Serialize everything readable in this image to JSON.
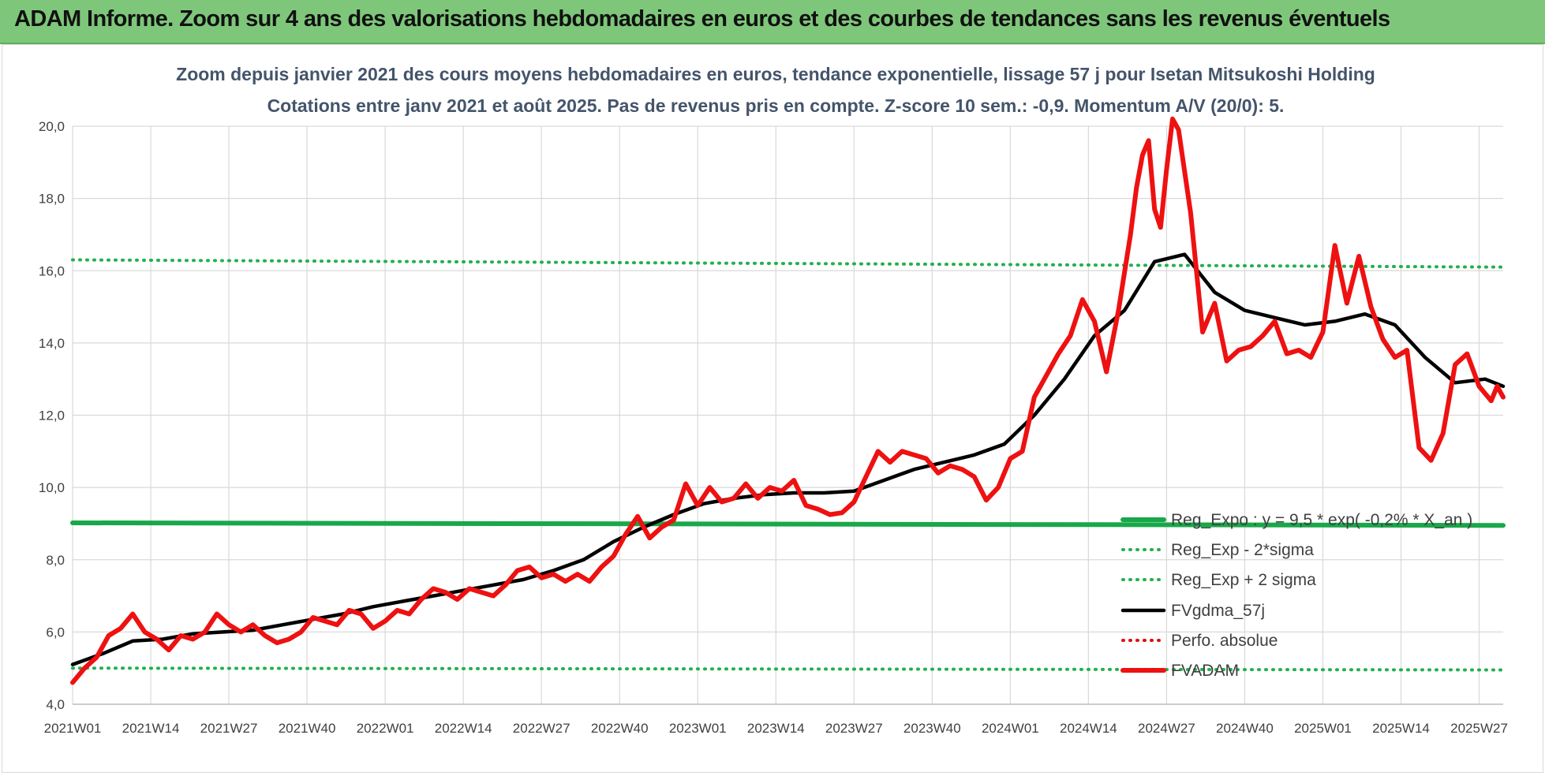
{
  "banner": {
    "title": "ADAM Informe. Zoom sur 4 ans des valorisations hebdomadaires en euros et des courbes de tendances sans les revenus éventuels"
  },
  "colors": {
    "banner": "#7ec77a",
    "reg_expo": "#18a84a",
    "sigma_bands": "#22b04f",
    "fvgdma": "#000000",
    "perfo": "#e01010",
    "fvadam": "#ee1111",
    "gridlines": "#d9d9d9",
    "title_text": "#44546a"
  },
  "chart_data": {
    "type": "line",
    "title": "Zoom depuis janvier 2021 des cours moyens hebdomadaires en euros, tendance exponentielle, lissage 57 j pour Isetan Mitsukoshi Holding",
    "subtitle": "Cotations entre janv 2021 et août 2025.  Pas de revenus pris en compte. Z-score 10 sem.: -0,9. Momentum A/V (20/0): 5.",
    "xlabel": "",
    "ylabel": "",
    "ylim": [
      4,
      20
    ],
    "yticks": [
      "4,0",
      "6,0",
      "8,0",
      "10,0",
      "12,0",
      "14,0",
      "16,0",
      "18,0",
      "20,0"
    ],
    "x_ticks": [
      "2021W01",
      "2021W14",
      "2021W27",
      "2021W40",
      "2022W01",
      "2022W14",
      "2022W27",
      "2022W40",
      "2023W01",
      "2023W14",
      "2023W27",
      "2023W40",
      "2024W01",
      "2024W14",
      "2024W27",
      "2024W40",
      "2025W01",
      "2025W14",
      "2025W27"
    ],
    "x_range_weeks": [
      0,
      238
    ],
    "grid": true,
    "legend_position": "bottom-right inside plot",
    "series": [
      {
        "name": "Reg_Expo : y = 9,5 * exp( -0,2% * X_an )",
        "style": "thick solid",
        "x": [
          0,
          238
        ],
        "y": [
          9.02,
          8.95
        ]
      },
      {
        "name": "Reg_Exp - 2*sigma",
        "style": "dotted",
        "x": [
          0,
          238
        ],
        "y": [
          5.0,
          4.95
        ]
      },
      {
        "name": "Reg_Exp + 2 sigma",
        "style": "dotted",
        "x": [
          0,
          238
        ],
        "y": [
          16.3,
          16.1
        ]
      },
      {
        "name": "FVgdma_57j",
        "style": "solid",
        "x": [
          0,
          5,
          10,
          15,
          20,
          25,
          30,
          35,
          40,
          45,
          50,
          55,
          60,
          65,
          70,
          75,
          80,
          85,
          90,
          95,
          100,
          105,
          110,
          115,
          120,
          125,
          130,
          135,
          140,
          145,
          150,
          155,
          160,
          165,
          170,
          175,
          180,
          185,
          190,
          195,
          200,
          205,
          210,
          215,
          220,
          225,
          230,
          235,
          238
        ],
        "y": [
          5.1,
          5.4,
          5.75,
          5.8,
          5.95,
          6.0,
          6.05,
          6.2,
          6.35,
          6.5,
          6.7,
          6.85,
          7.0,
          7.15,
          7.3,
          7.45,
          7.7,
          8.0,
          8.5,
          8.9,
          9.25,
          9.55,
          9.7,
          9.8,
          9.85,
          9.85,
          9.9,
          10.2,
          10.5,
          10.7,
          10.9,
          11.2,
          12.0,
          13.0,
          14.2,
          14.9,
          16.25,
          16.45,
          15.4,
          14.9,
          14.7,
          14.5,
          14.6,
          14.8,
          14.5,
          13.6,
          12.9,
          13.0,
          12.8
        ]
      },
      {
        "name": "Perfo. absolue",
        "style": "dotted",
        "x": [],
        "y": []
      },
      {
        "name": "FVADAM",
        "style": "thick solid",
        "x": [
          0,
          2,
          4,
          6,
          8,
          10,
          12,
          14,
          16,
          18,
          20,
          22,
          24,
          26,
          28,
          30,
          32,
          34,
          36,
          38,
          40,
          42,
          44,
          46,
          48,
          50,
          52,
          54,
          56,
          58,
          60,
          62,
          64,
          66,
          68,
          70,
          72,
          74,
          76,
          78,
          80,
          82,
          84,
          86,
          88,
          90,
          92,
          94,
          96,
          98,
          100,
          102,
          104,
          106,
          108,
          110,
          112,
          114,
          116,
          118,
          120,
          122,
          124,
          126,
          128,
          130,
          132,
          134,
          136,
          138,
          140,
          142,
          144,
          146,
          148,
          150,
          152,
          154,
          156,
          158,
          160,
          162,
          164,
          166,
          168,
          170,
          172,
          174,
          176,
          177,
          178,
          179,
          180,
          181,
          182,
          183,
          184,
          186,
          188,
          190,
          192,
          194,
          196,
          198,
          200,
          202,
          204,
          206,
          208,
          210,
          212,
          214,
          216,
          218,
          220,
          222,
          224,
          226,
          228,
          230,
          232,
          234,
          235,
          236,
          237,
          238
        ],
        "y": [
          4.6,
          5.0,
          5.3,
          5.9,
          6.1,
          6.5,
          6.0,
          5.8,
          5.5,
          5.9,
          5.8,
          6.0,
          6.5,
          6.2,
          6.0,
          6.2,
          5.9,
          5.7,
          5.8,
          6.0,
          6.4,
          6.3,
          6.2,
          6.6,
          6.5,
          6.1,
          6.3,
          6.6,
          6.5,
          6.9,
          7.2,
          7.1,
          6.9,
          7.2,
          7.1,
          7.0,
          7.3,
          7.7,
          7.8,
          7.5,
          7.6,
          7.4,
          7.6,
          7.4,
          7.8,
          8.1,
          8.7,
          9.2,
          8.6,
          8.9,
          9.1,
          10.1,
          9.5,
          10.0,
          9.6,
          9.7,
          10.1,
          9.7,
          10.0,
          9.9,
          10.2,
          9.5,
          9.4,
          9.25,
          9.3,
          9.6,
          10.3,
          11.0,
          10.7,
          11.0,
          10.9,
          10.8,
          10.4,
          10.6,
          10.5,
          10.3,
          9.65,
          10.0,
          10.8,
          11.0,
          12.5,
          13.1,
          13.7,
          14.2,
          15.2,
          14.6,
          13.2,
          14.9,
          17.0,
          18.3,
          19.2,
          19.6,
          17.7,
          17.2,
          18.8,
          20.2,
          19.9,
          17.6,
          14.3,
          15.1,
          13.5,
          13.8,
          13.9,
          14.2,
          14.6,
          13.7,
          13.8,
          13.6,
          14.3,
          16.7,
          15.1,
          16.4,
          15.0,
          14.1,
          13.6,
          13.8,
          11.1,
          10.75,
          11.5,
          13.4,
          13.7,
          12.8,
          12.6,
          12.4,
          12.8,
          12.5
        ]
      }
    ]
  }
}
